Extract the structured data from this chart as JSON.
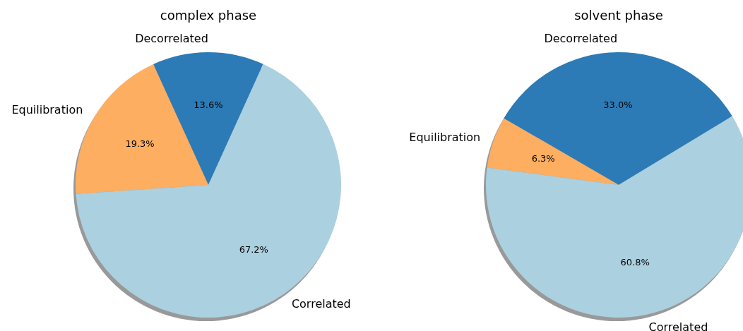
{
  "chart_data": [
    {
      "type": "pie",
      "title": "complex phase",
      "categories": [
        "Decorrelated",
        "Equilibration",
        "Correlated"
      ],
      "values": [
        13.6,
        19.3,
        67.2
      ],
      "colors": [
        "#2c7bb6",
        "#fdae61",
        "#abd0e0"
      ],
      "value_labels": [
        "13.6%",
        "19.3%",
        "67.2%"
      ]
    },
    {
      "type": "pie",
      "title": "solvent phase",
      "categories": [
        "Decorrelated",
        "Equilibration",
        "Correlated"
      ],
      "values": [
        33.0,
        6.3,
        60.8
      ],
      "colors": [
        "#2c7bb6",
        "#fdae61",
        "#abd0e0"
      ],
      "value_labels": [
        "33.0%",
        "6.3%",
        "60.8%"
      ]
    }
  ]
}
